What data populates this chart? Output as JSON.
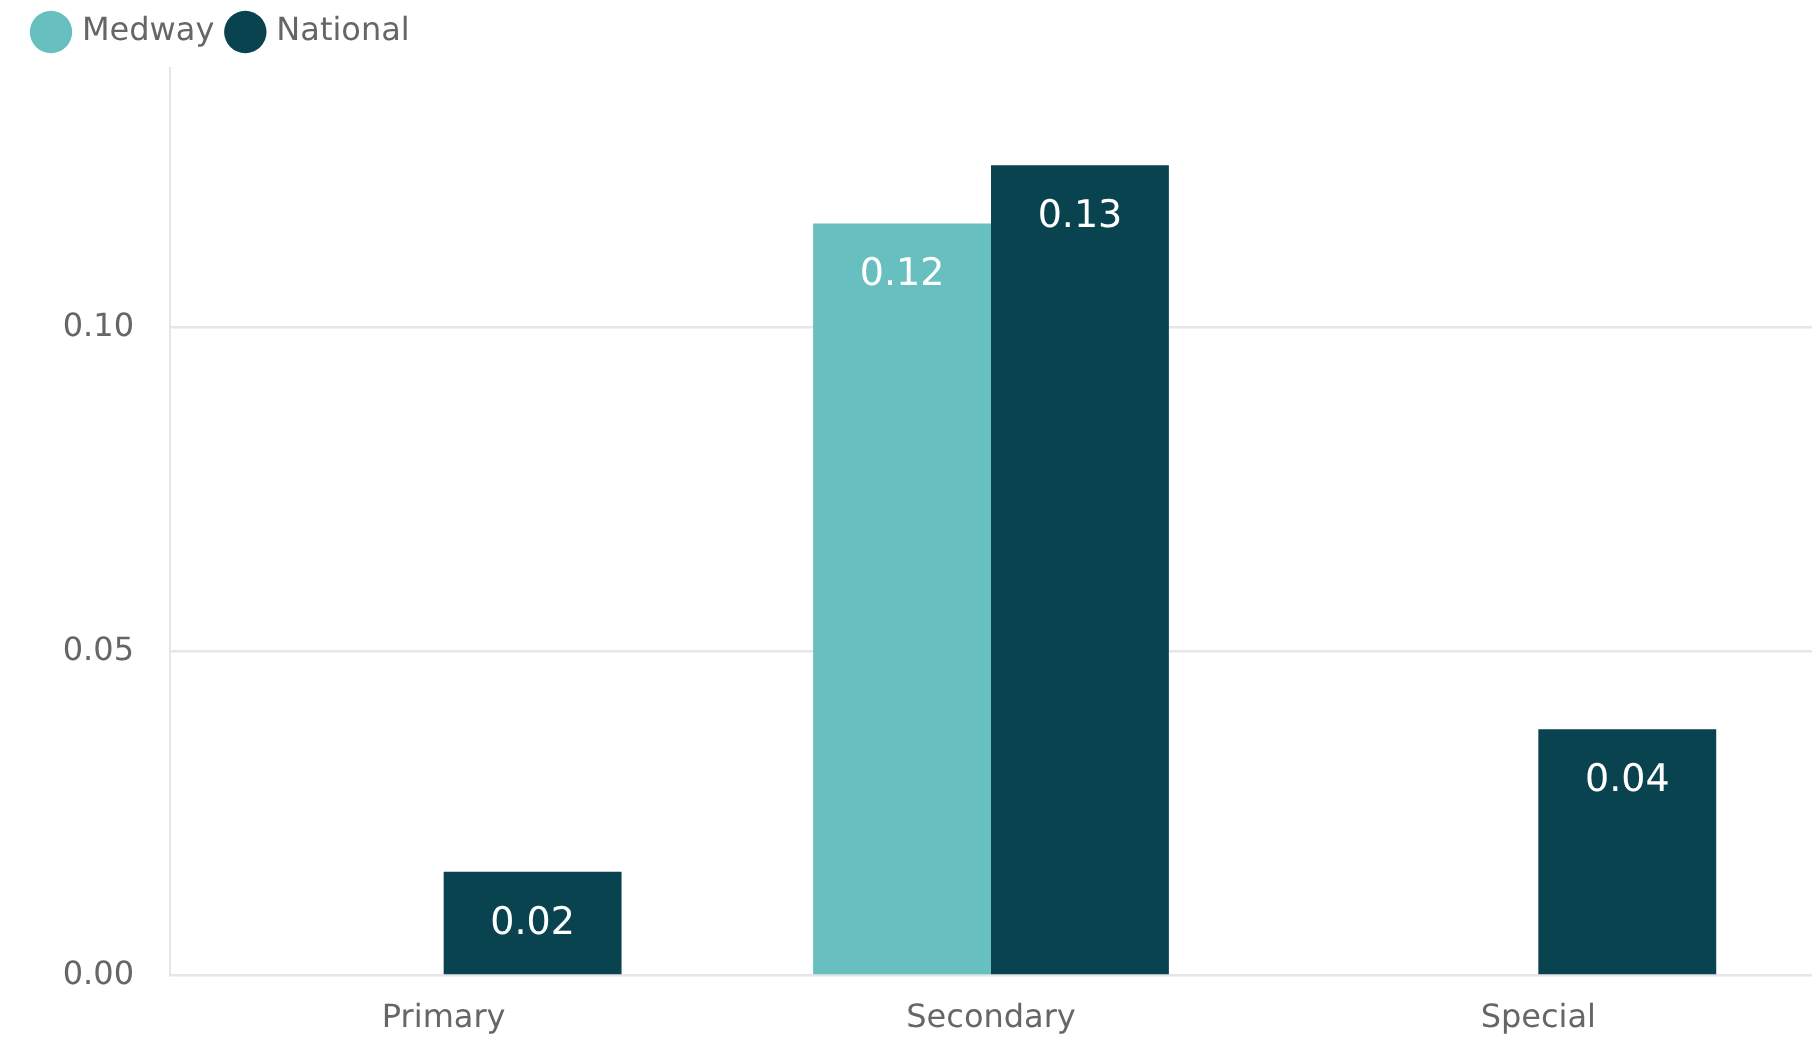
{
  "chart_data": {
    "type": "bar",
    "categories": [
      "Primary",
      "Secondary",
      "Special"
    ],
    "series": [
      {
        "name": "Medway",
        "color": "#67bfc0",
        "values": [
          null,
          0.116,
          null
        ],
        "value_labels": [
          null,
          "0.12",
          null
        ]
      },
      {
        "name": "National",
        "color": "#09434f",
        "values": [
          0.016,
          0.125,
          0.038
        ],
        "value_labels": [
          "0.02",
          "0.13",
          "0.04"
        ]
      }
    ],
    "ylim": [
      0,
      0.14
    ],
    "yticks": [
      {
        "value": 0,
        "label": "0.00"
      },
      {
        "value": 0.05,
        "label": "0.05"
      },
      {
        "value": 0.1,
        "label": "0.10"
      }
    ],
    "grid": "y",
    "legend": "top left"
  }
}
